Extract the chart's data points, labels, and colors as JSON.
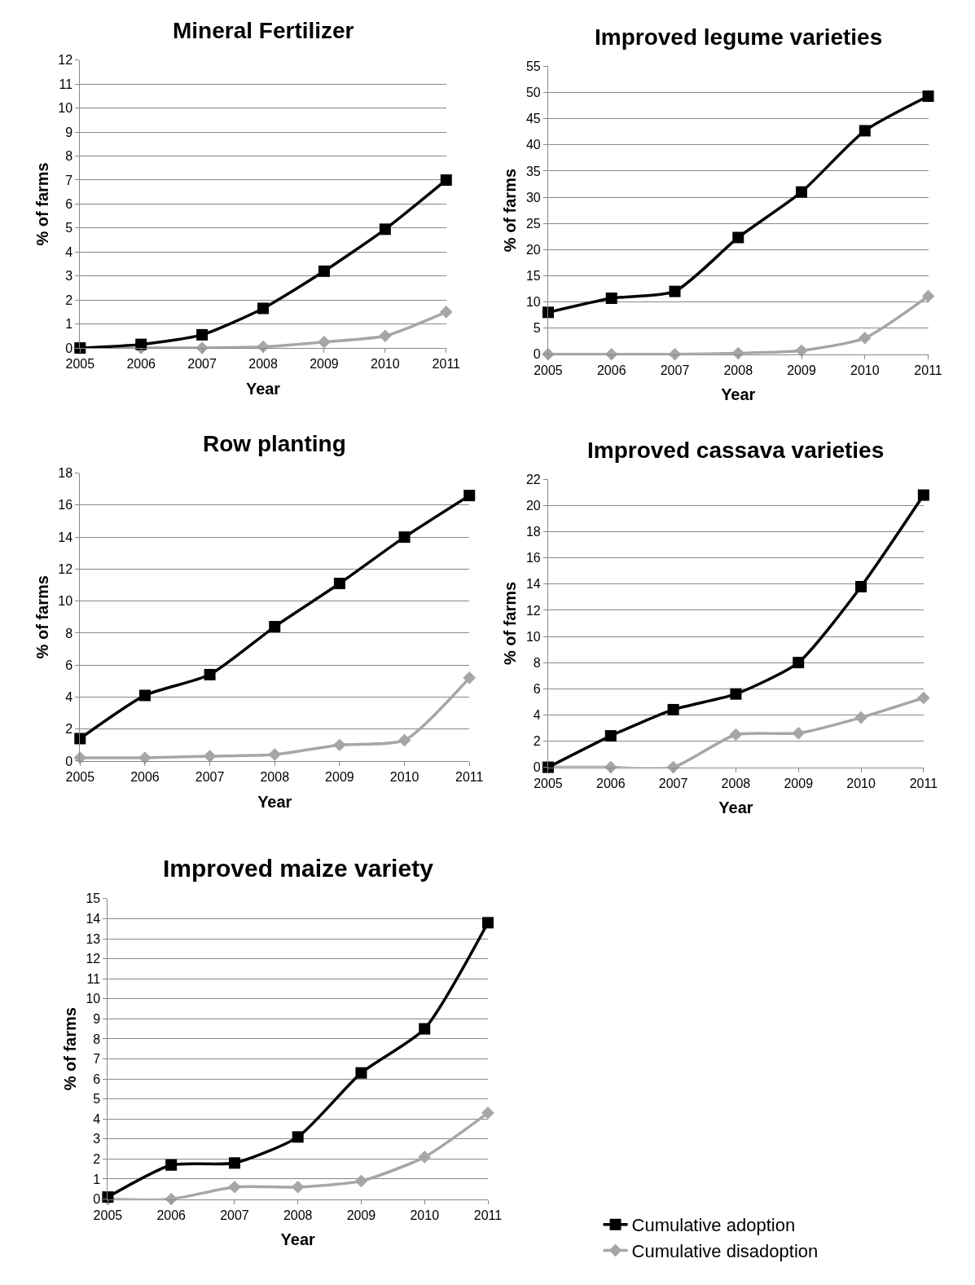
{
  "chart_data": [
    {
      "type": "line",
      "title": "Mineral Fertilizer",
      "xlabel": "Year",
      "ylabel": "% of farms",
      "x": [
        2005,
        2006,
        2007,
        2008,
        2009,
        2010,
        2011
      ],
      "xlim": [
        2005,
        2011
      ],
      "xticks": [
        2005,
        2006,
        2007,
        2008,
        2009,
        2010,
        2011
      ],
      "ylim": [
        0,
        12
      ],
      "yticks": [
        0,
        1,
        2,
        3,
        4,
        5,
        6,
        7,
        8,
        9,
        10,
        11,
        12
      ],
      "grid": "y",
      "series": [
        {
          "color": "#000000",
          "marker": "square",
          "values": [
            0,
            0.15,
            0.55,
            1.65,
            3.2,
            4.95,
            7.0
          ]
        },
        {
          "color": "#a6a6a6",
          "marker": "diamond",
          "values": [
            0,
            0,
            0,
            0.05,
            0.25,
            0.5,
            1.5
          ]
        }
      ]
    },
    {
      "type": "line",
      "title": "Improved legume varieties",
      "xlabel": "Year",
      "ylabel": "% of farms",
      "x": [
        2005,
        2006,
        2007,
        2008,
        2009,
        2010,
        2011
      ],
      "xlim": [
        2005,
        2011
      ],
      "xticks": [
        2005,
        2006,
        2007,
        2008,
        2009,
        2010,
        2011
      ],
      "ylim": [
        0,
        55
      ],
      "yticks": [
        0,
        5,
        10,
        15,
        20,
        25,
        30,
        35,
        40,
        45,
        50,
        55
      ],
      "grid": "y",
      "series": [
        {
          "color": "#000000",
          "marker": "square",
          "values": [
            8,
            10.7,
            12,
            22.3,
            31,
            42.7,
            49.3
          ]
        },
        {
          "color": "#a6a6a6",
          "marker": "diamond",
          "values": [
            0,
            0,
            0,
            0.2,
            0.7,
            3.1,
            11.1
          ]
        }
      ]
    },
    {
      "type": "line",
      "title": "Row planting",
      "xlabel": "Year",
      "ylabel": "% of farms",
      "x": [
        2005,
        2006,
        2007,
        2008,
        2009,
        2010,
        2011
      ],
      "xlim": [
        2005,
        2011
      ],
      "xticks": [
        2005,
        2006,
        2007,
        2008,
        2009,
        2010,
        2011
      ],
      "ylim": [
        0,
        18
      ],
      "yticks": [
        0,
        2,
        4,
        6,
        8,
        10,
        12,
        14,
        16,
        18
      ],
      "grid": "y",
      "series": [
        {
          "color": "#000000",
          "marker": "square",
          "values": [
            1.4,
            4.1,
            5.4,
            8.4,
            11.1,
            14.0,
            16.6
          ]
        },
        {
          "color": "#a6a6a6",
          "marker": "diamond",
          "values": [
            0.2,
            0.2,
            0.3,
            0.4,
            1.0,
            1.3,
            5.2
          ]
        }
      ]
    },
    {
      "type": "line",
      "title": "Improved cassava varieties",
      "xlabel": "Year",
      "ylabel": "% of farms",
      "x": [
        2005,
        2006,
        2007,
        2008,
        2009,
        2010,
        2011
      ],
      "xlim": [
        2005,
        2011
      ],
      "xticks": [
        2005,
        2006,
        2007,
        2008,
        2009,
        2010,
        2011
      ],
      "ylim": [
        0,
        22
      ],
      "yticks": [
        0,
        2,
        4,
        6,
        8,
        10,
        12,
        14,
        16,
        18,
        20,
        22
      ],
      "grid": "y",
      "series": [
        {
          "color": "#000000",
          "marker": "square",
          "values": [
            0,
            2.4,
            4.4,
            5.6,
            8.0,
            13.8,
            20.8
          ]
        },
        {
          "color": "#a6a6a6",
          "marker": "diamond",
          "values": [
            0,
            0,
            0,
            2.5,
            2.6,
            3.8,
            5.3
          ]
        }
      ]
    },
    {
      "type": "line",
      "title": "Improved maize variety",
      "xlabel": "Year",
      "ylabel": "% of farms",
      "x": [
        2005,
        2006,
        2007,
        2008,
        2009,
        2010,
        2011
      ],
      "xlim": [
        2005,
        2011
      ],
      "xticks": [
        2005,
        2006,
        2007,
        2008,
        2009,
        2010,
        2011
      ],
      "ylim": [
        0,
        15
      ],
      "yticks": [
        0,
        1,
        2,
        3,
        4,
        5,
        6,
        7,
        8,
        9,
        10,
        11,
        12,
        13,
        14,
        15
      ],
      "grid": "y",
      "legend": "bottom right",
      "series": [
        {
          "name": "Cumulative adoption",
          "color": "#000000",
          "marker": "square",
          "values": [
            0.1,
            1.7,
            1.8,
            3.1,
            6.3,
            8.5,
            13.8
          ]
        },
        {
          "name": "Cumulative disadoption",
          "color": "#a6a6a6",
          "marker": "diamond",
          "values": [
            0,
            0,
            0.6,
            0.6,
            0.9,
            2.1,
            4.3
          ]
        }
      ]
    }
  ]
}
